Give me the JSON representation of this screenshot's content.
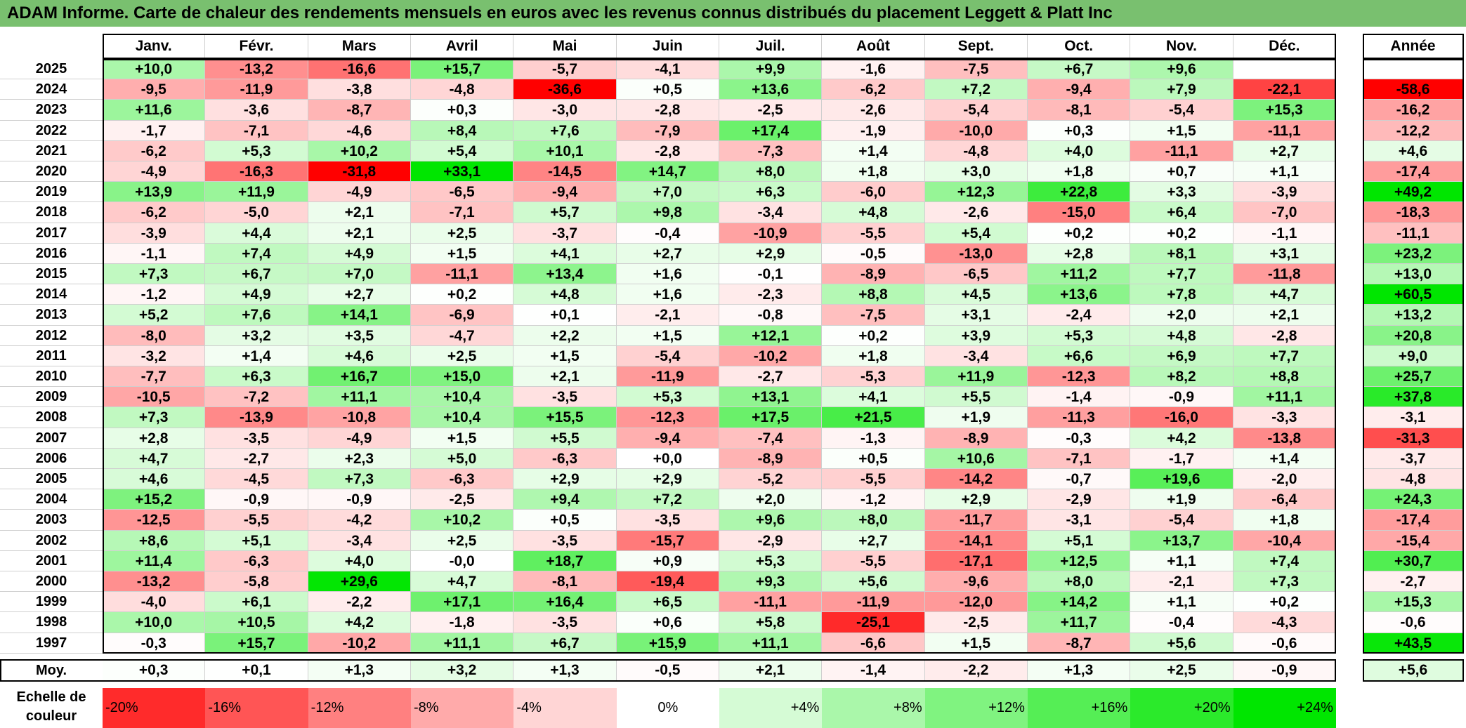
{
  "title": "ADAM Informe. Carte de chaleur des rendements mensuels en euros avec les revenus connus distribués du placement Leggett & Platt Inc",
  "chart_data": {
    "type": "heatmap",
    "title": "ADAM Informe. Carte de chaleur des rendements mensuels en euros avec les revenus connus distribués du placement Leggett & Platt Inc",
    "months": [
      "Janv.",
      "Févr.",
      "Mars",
      "Avril",
      "Mai",
      "Juin",
      "Juil.",
      "Août",
      "Sept.",
      "Oct.",
      "Nov.",
      "Déc."
    ],
    "annual_header": "Année",
    "rows": [
      {
        "year": "2025",
        "values": [
          "+10,0",
          "-13,2",
          "-16,6",
          "+15,7",
          "-5,7",
          "-4,1",
          "+9,9",
          "-1,6",
          "-7,5",
          "+6,7",
          "+9,6",
          ""
        ],
        "annual": ""
      },
      {
        "year": "2024",
        "values": [
          "-9,5",
          "-11,9",
          "-3,8",
          "-4,8",
          "-36,6",
          "+0,5",
          "+13,6",
          "-6,2",
          "+7,2",
          "-9,4",
          "+7,9",
          "-22,1"
        ],
        "annual": "-58,6"
      },
      {
        "year": "2023",
        "values": [
          "+11,6",
          "-3,6",
          "-8,7",
          "+0,3",
          "-3,0",
          "-2,8",
          "-2,5",
          "-2,6",
          "-5,4",
          "-8,1",
          "-5,4",
          "+15,3"
        ],
        "annual": "-16,2"
      },
      {
        "year": "2022",
        "values": [
          "-1,7",
          "-7,1",
          "-4,6",
          "+8,4",
          "+7,6",
          "-7,9",
          "+17,4",
          "-1,9",
          "-10,0",
          "+0,3",
          "+1,5",
          "-11,1"
        ],
        "annual": "-12,2"
      },
      {
        "year": "2021",
        "values": [
          "-6,2",
          "+5,3",
          "+10,2",
          "+5,4",
          "+10,1",
          "-2,8",
          "-7,3",
          "+1,4",
          "-4,8",
          "+4,0",
          "-11,1",
          "+2,7"
        ],
        "annual": "+4,6"
      },
      {
        "year": "2020",
        "values": [
          "-4,9",
          "-16,3",
          "-31,8",
          "+33,1",
          "-14,5",
          "+14,7",
          "+8,0",
          "+1,8",
          "+3,0",
          "+1,8",
          "+0,7",
          "+1,1"
        ],
        "annual": "-17,4"
      },
      {
        "year": "2019",
        "values": [
          "+13,9",
          "+11,9",
          "-4,9",
          "-6,5",
          "-9,4",
          "+7,0",
          "+6,3",
          "-6,0",
          "+12,3",
          "+22,8",
          "+3,3",
          "-3,9"
        ],
        "annual": "+49,2"
      },
      {
        "year": "2018",
        "values": [
          "-6,2",
          "-5,0",
          "+2,1",
          "-7,1",
          "+5,7",
          "+9,8",
          "-3,4",
          "+4,8",
          "-2,6",
          "-15,0",
          "+6,4",
          "-7,0"
        ],
        "annual": "-18,3"
      },
      {
        "year": "2017",
        "values": [
          "-3,9",
          "+4,4",
          "+2,1",
          "+2,5",
          "-3,7",
          "-0,4",
          "-10,9",
          "-5,5",
          "+5,4",
          "+0,2",
          "+0,2",
          "-1,1"
        ],
        "annual": "-11,1"
      },
      {
        "year": "2016",
        "values": [
          "-1,1",
          "+7,4",
          "+4,9",
          "+1,5",
          "+4,1",
          "+2,7",
          "+2,9",
          "-0,5",
          "-13,0",
          "+2,8",
          "+8,1",
          "+3,1"
        ],
        "annual": "+23,2"
      },
      {
        "year": "2015",
        "values": [
          "+7,3",
          "+6,7",
          "+7,0",
          "-11,1",
          "+13,4",
          "+1,6",
          "-0,1",
          "-8,9",
          "-6,5",
          "+11,2",
          "+7,7",
          "-11,8"
        ],
        "annual": "+13,0"
      },
      {
        "year": "2014",
        "values": [
          "-1,2",
          "+4,9",
          "+2,7",
          "+0,2",
          "+4,8",
          "+1,6",
          "-2,3",
          "+8,8",
          "+4,5",
          "+13,6",
          "+7,8",
          "+4,7"
        ],
        "annual": "+60,5"
      },
      {
        "year": "2013",
        "values": [
          "+5,2",
          "+7,6",
          "+14,1",
          "-6,9",
          "+0,1",
          "-2,1",
          "-0,8",
          "-7,5",
          "+3,1",
          "-2,4",
          "+2,0",
          "+2,1"
        ],
        "annual": "+13,2"
      },
      {
        "year": "2012",
        "values": [
          "-8,0",
          "+3,2",
          "+3,5",
          "-4,7",
          "+2,2",
          "+1,5",
          "+12,1",
          "+0,2",
          "+3,9",
          "+5,3",
          "+4,8",
          "-2,8"
        ],
        "annual": "+20,8"
      },
      {
        "year": "2011",
        "values": [
          "-3,2",
          "+1,4",
          "+4,6",
          "+2,5",
          "+1,5",
          "-5,4",
          "-10,2",
          "+1,8",
          "-3,4",
          "+6,6",
          "+6,9",
          "+7,7"
        ],
        "annual": "+9,0"
      },
      {
        "year": "2010",
        "values": [
          "-7,7",
          "+6,3",
          "+16,7",
          "+15,0",
          "+2,1",
          "-11,9",
          "-2,7",
          "-5,3",
          "+11,9",
          "-12,3",
          "+8,2",
          "+8,8"
        ],
        "annual": "+25,7"
      },
      {
        "year": "2009",
        "values": [
          "-10,5",
          "-7,2",
          "+11,1",
          "+10,4",
          "-3,5",
          "+5,3",
          "+13,1",
          "+4,1",
          "+5,5",
          "-1,4",
          "-0,9",
          "+11,1"
        ],
        "annual": "+37,8"
      },
      {
        "year": "2008",
        "values": [
          "+7,3",
          "-13,9",
          "-10,8",
          "+10,4",
          "+15,5",
          "-12,3",
          "+17,5",
          "+21,5",
          "+1,9",
          "-11,3",
          "-16,0",
          "-3,3"
        ],
        "annual": "-3,1"
      },
      {
        "year": "2007",
        "values": [
          "+2,8",
          "-3,5",
          "-4,9",
          "+1,5",
          "+5,5",
          "-9,4",
          "-7,4",
          "-1,3",
          "-8,9",
          "-0,3",
          "+4,2",
          "-13,8"
        ],
        "annual": "-31,3"
      },
      {
        "year": "2006",
        "values": [
          "+4,7",
          "-2,7",
          "+2,3",
          "+5,0",
          "-6,3",
          "+0,0",
          "-8,9",
          "+0,5",
          "+10,6",
          "-7,1",
          "-1,7",
          "+1,4"
        ],
        "annual": "-3,7"
      },
      {
        "year": "2005",
        "values": [
          "+4,6",
          "-4,5",
          "+7,3",
          "-6,3",
          "+2,9",
          "+2,9",
          "-5,2",
          "-5,5",
          "-14,2",
          "-0,7",
          "+19,6",
          "-2,0"
        ],
        "annual": "-4,8"
      },
      {
        "year": "2004",
        "values": [
          "+15,2",
          "-0,9",
          "-0,9",
          "-2,5",
          "+9,4",
          "+7,2",
          "+2,0",
          "-1,2",
          "+2,9",
          "-2,9",
          "+1,9",
          "-6,4"
        ],
        "annual": "+24,3"
      },
      {
        "year": "2003",
        "values": [
          "-12,5",
          "-5,5",
          "-4,2",
          "+10,2",
          "+0,5",
          "-3,5",
          "+9,6",
          "+8,0",
          "-11,7",
          "-3,1",
          "-5,4",
          "+1,8"
        ],
        "annual": "-17,4"
      },
      {
        "year": "2002",
        "values": [
          "+8,6",
          "+5,1",
          "-3,4",
          "+2,5",
          "-3,5",
          "-15,7",
          "-2,9",
          "+2,7",
          "-14,1",
          "+5,1",
          "+13,7",
          "-10,4"
        ],
        "annual": "-15,4"
      },
      {
        "year": "2001",
        "values": [
          "+11,4",
          "-6,3",
          "+4,0",
          "-0,0",
          "+18,7",
          "+0,9",
          "+5,3",
          "-5,5",
          "-17,1",
          "+12,5",
          "+1,1",
          "+7,4"
        ],
        "annual": "+30,7"
      },
      {
        "year": "2000",
        "values": [
          "-13,2",
          "-5,8",
          "+29,6",
          "+4,7",
          "-8,1",
          "-19,4",
          "+9,3",
          "+5,6",
          "-9,6",
          "+8,0",
          "-2,1",
          "+7,3"
        ],
        "annual": "-2,7"
      },
      {
        "year": "1999",
        "values": [
          "-4,0",
          "+6,1",
          "-2,2",
          "+17,1",
          "+16,4",
          "+6,5",
          "-11,1",
          "-11,9",
          "-12,0",
          "+14,2",
          "+1,1",
          "+0,2"
        ],
        "annual": "+15,3"
      },
      {
        "year": "1998",
        "values": [
          "+10,0",
          "+10,5",
          "+4,2",
          "-1,8",
          "-3,5",
          "+0,6",
          "+5,8",
          "-25,1",
          "-2,5",
          "+11,7",
          "-0,4",
          "-4,3"
        ],
        "annual": "-0,6"
      },
      {
        "year": "1997",
        "values": [
          "-0,3",
          "+15,7",
          "-10,2",
          "+11,1",
          "+6,7",
          "+15,9",
          "+11,1",
          "-6,6",
          "+1,5",
          "-8,7",
          "+5,6",
          "-0,6"
        ],
        "annual": "+43,5"
      }
    ],
    "average": {
      "label": "Moy.",
      "values": [
        "+0,3",
        "+0,1",
        "+1,3",
        "+3,2",
        "+1,3",
        "-0,5",
        "+2,1",
        "-1,4",
        "-2,2",
        "+1,3",
        "+2,5",
        "-0,9"
      ],
      "annual": "+5,6"
    },
    "legend": {
      "title": "Echelle de couleur",
      "stops": [
        "-20%",
        "-16%",
        "-12%",
        "-8%",
        "-4%",
        "0%",
        "+4%",
        "+8%",
        "+12%",
        "+16%",
        "+20%",
        "+24%"
      ],
      "stop_values": [
        -20,
        -16,
        -12,
        -8,
        -4,
        0,
        4,
        8,
        12,
        16,
        20,
        24
      ]
    },
    "colors": {
      "negative": "#ff0000",
      "neutral": "#ffffff",
      "positive": "#00e000",
      "title_bar": "#79c06f"
    }
  }
}
